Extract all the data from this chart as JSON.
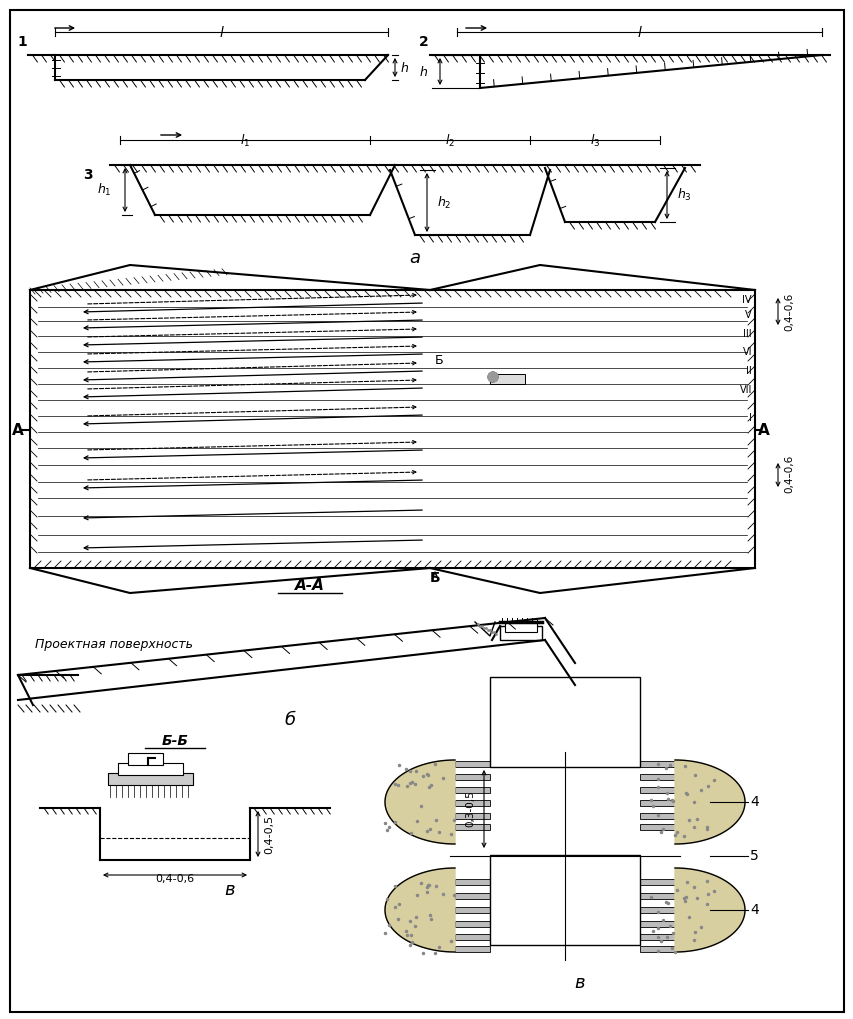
{
  "bg_color": "#ffffff",
  "line_color": "#000000",
  "title_a": "а",
  "title_b": "б",
  "title_v": "в",
  "label_proj": "Проектная поверхность",
  "label_AA": "А-А",
  "label_BB": "Б-Б",
  "dim_04_06": "0,4-0,6",
  "dim_04_05": "0,4-0,5",
  "dim_03_05": "0,3-0,5"
}
